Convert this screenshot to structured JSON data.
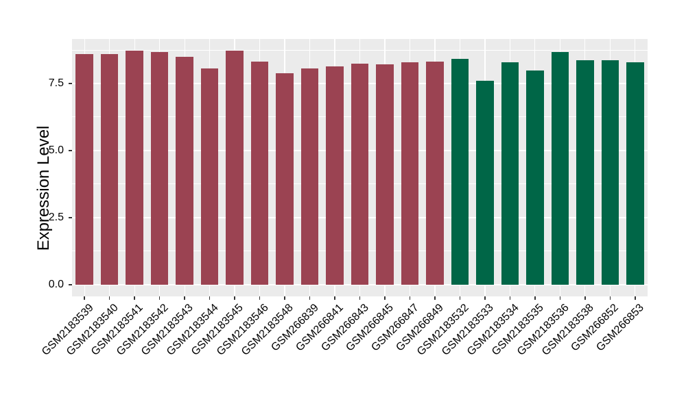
{
  "chart_data": {
    "type": "bar",
    "title": "",
    "xlabel": "",
    "ylabel": "Expression Level",
    "ylim": [
      -0.44,
      9.16
    ],
    "yticks": [
      0.0,
      2.5,
      5.0,
      7.5
    ],
    "ytick_labels": [
      "0.0",
      "2.5",
      "5.0",
      "7.5"
    ],
    "yminor": [
      1.25,
      3.75,
      6.25,
      8.75
    ],
    "grid": "major+minor",
    "legend_position": "none",
    "panel_background": "#ebebeb",
    "grid_color": "#ffffff",
    "tick_mark_color": "#333333",
    "text_color": "#000000",
    "group_colors": {
      "red": "#9b4352",
      "green": "#006647"
    },
    "categories": [
      "GSM2183539",
      "GSM2183540",
      "GSM2183541",
      "GSM2183542",
      "GSM2183543",
      "GSM2183544",
      "GSM2183545",
      "GSM2183546",
      "GSM2183548",
      "GSM266839",
      "GSM266841",
      "GSM266843",
      "GSM266845",
      "GSM266847",
      "GSM266849",
      "GSM2183532",
      "GSM2183533",
      "GSM2183534",
      "GSM2183535",
      "GSM2183536",
      "GSM2183538",
      "GSM266852",
      "GSM266853"
    ],
    "values": [
      8.6,
      8.6,
      8.72,
      8.68,
      8.5,
      8.06,
      8.73,
      8.33,
      7.89,
      8.06,
      8.14,
      8.25,
      8.21,
      8.29,
      8.32,
      8.42,
      7.61,
      8.3,
      7.98,
      8.67,
      8.38,
      8.36,
      8.29
    ],
    "bar_groups": [
      "red",
      "red",
      "red",
      "red",
      "red",
      "red",
      "red",
      "red",
      "red",
      "red",
      "red",
      "red",
      "red",
      "red",
      "red",
      "green",
      "green",
      "green",
      "green",
      "green",
      "green",
      "green",
      "green"
    ]
  }
}
